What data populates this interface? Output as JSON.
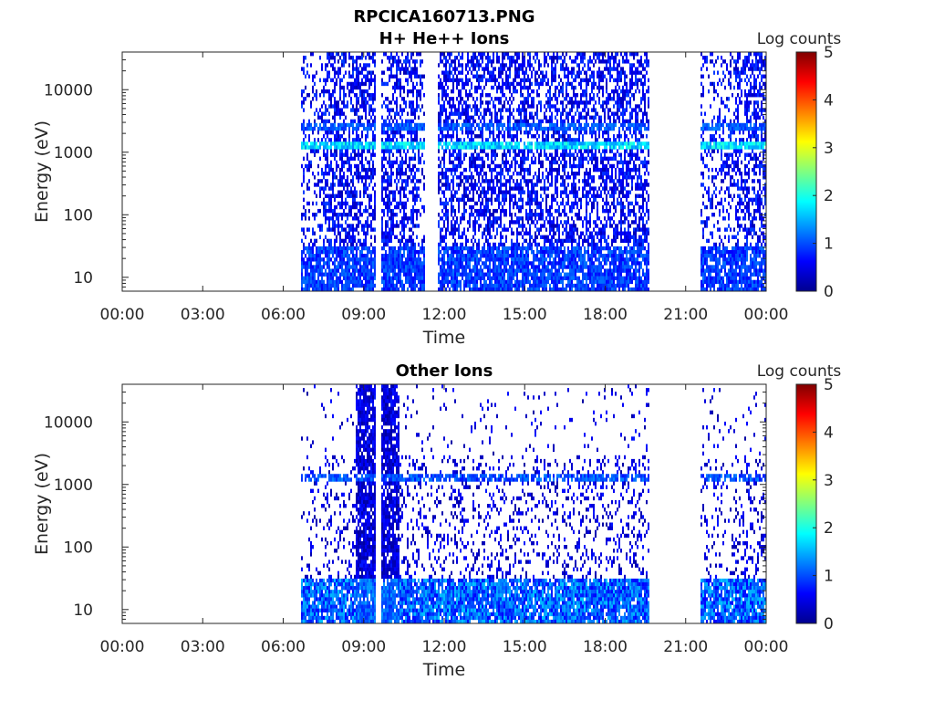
{
  "figure": {
    "title": "RPCICA160713.PNG"
  },
  "chart_data": [
    {
      "type": "heatmap",
      "title": "H+ He++ Ions",
      "xlabel": "Time",
      "ylabel": "Energy (eV)",
      "x_ticks": [
        "00:00",
        "03:00",
        "06:00",
        "09:00",
        "12:00",
        "15:00",
        "18:00",
        "21:00",
        "00:00"
      ],
      "x_range_hours": [
        0,
        24
      ],
      "y_scale": "log",
      "y_ticks": [
        "10",
        "100",
        "1000",
        "10000"
      ],
      "y_range": [
        6,
        40000
      ],
      "colorbar": {
        "label": "Log counts",
        "ticks": [
          "0",
          "1",
          "2",
          "3",
          "4",
          "5"
        ],
        "range": [
          0,
          5
        ],
        "colormap": "jet"
      },
      "data_intervals_hours": [
        [
          6.6,
          9.45
        ],
        [
          9.65,
          11.25
        ],
        [
          11.7,
          19.6
        ],
        [
          21.5,
          24
        ]
      ],
      "features": [
        {
          "energy_eV": 1300,
          "log_counts": 2.0,
          "description": "persistent band"
        },
        {
          "energy_eV": 2600,
          "log_counts": 1.0,
          "description": "band"
        },
        {
          "energy_eV_range": [
            6,
            30
          ],
          "log_counts": 1.0,
          "description": "low-energy enhancement"
        }
      ]
    },
    {
      "type": "heatmap",
      "title": "Other Ions",
      "xlabel": "Time",
      "ylabel": "Energy (eV)",
      "x_ticks": [
        "00:00",
        "03:00",
        "06:00",
        "09:00",
        "12:00",
        "15:00",
        "18:00",
        "21:00",
        "00:00"
      ],
      "x_range_hours": [
        0,
        24
      ],
      "y_scale": "log",
      "y_ticks": [
        "10",
        "100",
        "1000",
        "10000"
      ],
      "y_range": [
        6,
        40000
      ],
      "colorbar": {
        "label": "Log counts",
        "ticks": [
          "0",
          "1",
          "2",
          "3",
          "4",
          "5"
        ],
        "range": [
          0,
          5
        ],
        "colormap": "jet"
      },
      "data_intervals_hours": [
        [
          6.6,
          9.45
        ],
        [
          9.65,
          19.6
        ],
        [
          21.5,
          24
        ]
      ],
      "features": [
        {
          "time_hours_range": [
            8.7,
            9.4
          ],
          "description": "broad dense burst"
        },
        {
          "time_hours_range": [
            9.65,
            10.3
          ],
          "description": "broad dense burst"
        },
        {
          "energy_eV": 1300,
          "log_counts": 1.0,
          "description": "band"
        },
        {
          "energy_eV_range": [
            6,
            20
          ],
          "log_counts": 1.5,
          "description": "low-energy enhancement"
        }
      ]
    }
  ]
}
